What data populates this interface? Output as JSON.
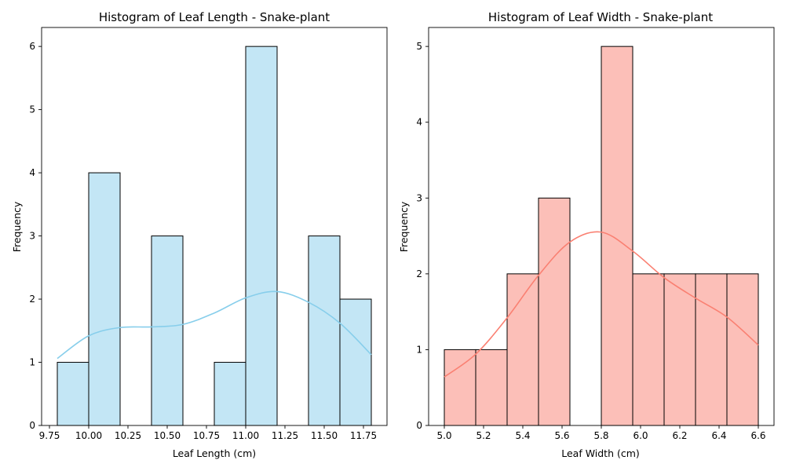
{
  "colors": {
    "left_fill": "#87ceeb",
    "left_line": "#87ceeb",
    "right_fill": "#fa8072",
    "right_line": "#fa8072",
    "edge": "#000000"
  },
  "chart_data": [
    {
      "type": "histogram",
      "title": "Histogram of Leaf Length - Snake-plant",
      "xlabel": "Leaf Length (cm)",
      "ylabel": "Frequency",
      "xlim": [
        9.7,
        11.9
      ],
      "ylim": [
        0,
        6.3
      ],
      "xticks": [
        "9.75",
        "10.00",
        "10.25",
        "10.50",
        "10.75",
        "11.00",
        "11.25",
        "11.50",
        "11.75"
      ],
      "xtick_values": [
        9.75,
        10.0,
        10.25,
        10.5,
        10.75,
        11.0,
        11.25,
        11.5,
        11.75
      ],
      "yticks": [
        "0",
        "1",
        "2",
        "3",
        "4",
        "5",
        "6"
      ],
      "ytick_values": [
        0,
        1,
        2,
        3,
        4,
        5,
        6
      ],
      "bin_edges": [
        9.8,
        10.0,
        10.2,
        10.4,
        10.6,
        10.8,
        11.0,
        11.2,
        11.4,
        11.6,
        11.8
      ],
      "counts": [
        1,
        4,
        0,
        3,
        0,
        1,
        6,
        0,
        3,
        2
      ],
      "kde": {
        "x": [
          9.8,
          10.0,
          10.2,
          10.4,
          10.6,
          10.8,
          11.0,
          11.2,
          11.4,
          11.6,
          11.8
        ],
        "y": [
          1.06,
          1.42,
          1.55,
          1.56,
          1.6,
          1.78,
          2.02,
          2.12,
          1.95,
          1.62,
          1.12
        ]
      }
    },
    {
      "type": "histogram",
      "title": "Histogram of Leaf Width - Snake-plant",
      "xlabel": "Leaf Width (cm)",
      "ylabel": "Frequency",
      "xlim": [
        4.92,
        6.68
      ],
      "ylim": [
        0,
        5.25
      ],
      "xticks": [
        "5.0",
        "5.2",
        "5.4",
        "5.6",
        "5.8",
        "6.0",
        "6.2",
        "6.4",
        "6.6"
      ],
      "xtick_values": [
        5.0,
        5.2,
        5.4,
        5.6,
        5.8,
        6.0,
        6.2,
        6.4,
        6.6
      ],
      "yticks": [
        "0",
        "1",
        "2",
        "3",
        "4",
        "5"
      ],
      "ytick_values": [
        0,
        1,
        2,
        3,
        4,
        5
      ],
      "bin_edges": [
        5.0,
        5.16,
        5.32,
        5.48,
        5.64,
        5.8,
        5.96,
        6.12,
        6.28,
        6.44,
        6.6
      ],
      "counts": [
        1,
        1,
        2,
        3,
        0,
        5,
        2,
        2,
        2,
        2
      ],
      "kde": {
        "x": [
          5.0,
          5.16,
          5.32,
          5.48,
          5.64,
          5.8,
          5.96,
          6.12,
          6.28,
          6.44,
          6.6
        ],
        "y": [
          0.64,
          0.94,
          1.42,
          1.98,
          2.42,
          2.55,
          2.3,
          1.95,
          1.68,
          1.43,
          1.06
        ]
      }
    }
  ]
}
